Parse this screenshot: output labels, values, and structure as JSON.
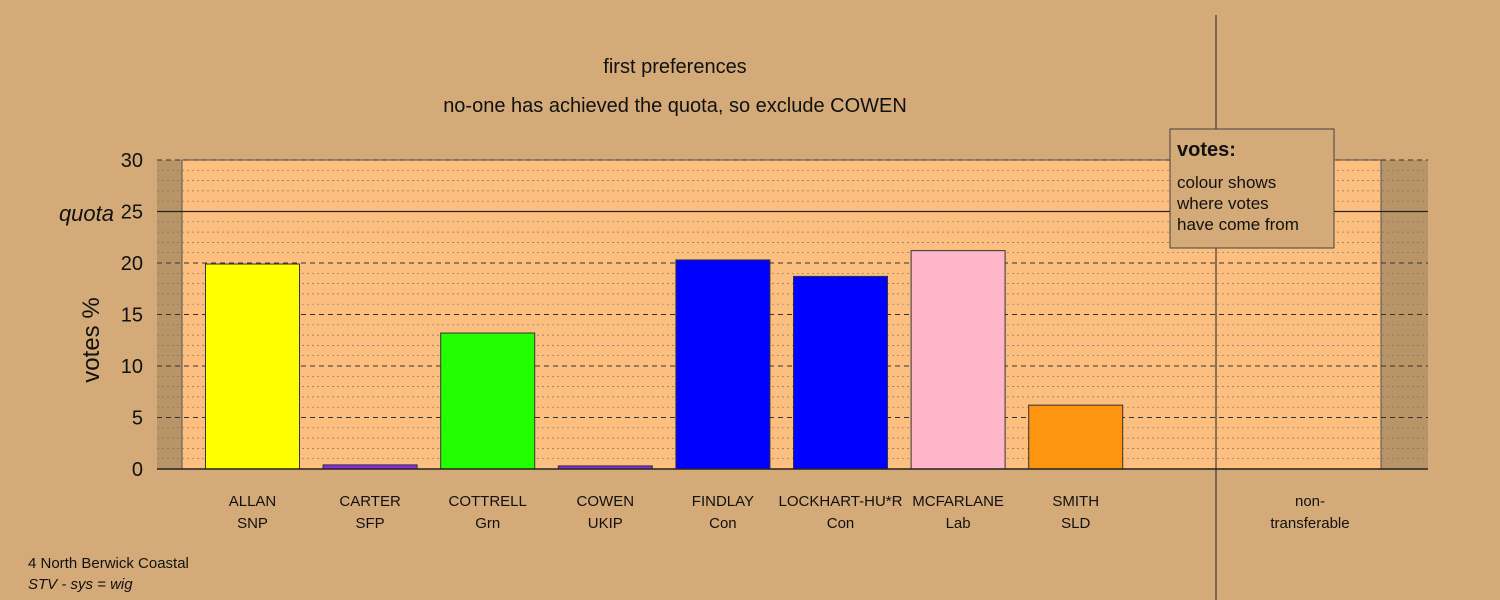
{
  "title": "first preferences",
  "subtitle": "no-one has achieved the quota, so exclude COWEN",
  "footer": {
    "line1": "4 North Berwick Coastal",
    "line2": "STV - sys = wig"
  },
  "legend": {
    "heading": "votes:",
    "lines": [
      "colour shows",
      "where votes",
      "have come from"
    ]
  },
  "colors": {
    "background": "#d4aa78",
    "plot_area": "#fdbf7f",
    "shade": "#b99466"
  },
  "chart_data": {
    "type": "bar",
    "ylabel": "votes %",
    "ylim": [
      0,
      30
    ],
    "yticks": [
      0,
      5,
      10,
      15,
      20,
      25,
      30
    ],
    "quota": {
      "label": "quota",
      "value": 25
    },
    "categories": [
      {
        "name": "ALLAN",
        "party": "SNP",
        "value": 19.9,
        "color": "#ffff00"
      },
      {
        "name": "CARTER",
        "party": "SFP",
        "value": 0.4,
        "color": "#8a2be2"
      },
      {
        "name": "COTTRELL",
        "party": "Grn",
        "value": 13.2,
        "color": "#22ff00"
      },
      {
        "name": "COWEN",
        "party": "UKIP",
        "value": 0.3,
        "color": "#8a2be2"
      },
      {
        "name": "FINDLAY",
        "party": "Con",
        "value": 20.3,
        "color": "#0000ff"
      },
      {
        "name": "LOCKHART-HU*R",
        "party": "Con",
        "value": 18.7,
        "color": "#0000ff"
      },
      {
        "name": "MCFARLANE",
        "party": "Lab",
        "value": 21.2,
        "color": "#ffb6c8"
      },
      {
        "name": "SMITH",
        "party": "SLD",
        "value": 6.2,
        "color": "#ff9411"
      }
    ],
    "nontransferable": {
      "line1": "non-",
      "line2": "transferable",
      "value": 0
    }
  }
}
